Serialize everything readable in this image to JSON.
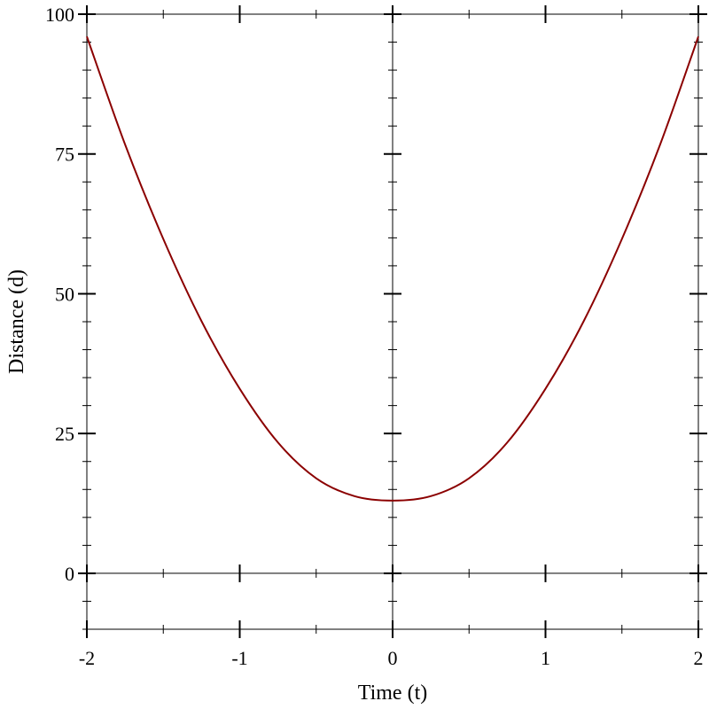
{
  "chart_data": {
    "type": "line",
    "xlabel": "Time (t)",
    "ylabel": "Distance (d)",
    "xlim": [
      -2,
      2
    ],
    "ylim": [
      -10,
      100
    ],
    "x_ticks": [
      -2,
      -1,
      0,
      1,
      2
    ],
    "x_tick_labels": [
      "-2",
      "-1",
      "0",
      "1",
      "2"
    ],
    "x_minor_step": 0.5,
    "y_ticks": [
      0,
      25,
      50,
      75,
      100
    ],
    "y_tick_labels": [
      "0",
      "25",
      "50",
      "75",
      "100"
    ],
    "y_minor_step": 5,
    "grid": "axis lines at x=0 and y=0, frame on all sides",
    "series": [
      {
        "color": "#8b0000",
        "x": [
          -2,
          -1.75,
          -1.5,
          -1.25,
          -1,
          -0.75,
          -0.5,
          -0.25,
          0,
          0.25,
          0.5,
          0.75,
          1,
          1.25,
          1.5,
          1.75,
          2
        ],
        "y": [
          96,
          76.7,
          59.8,
          45.1,
          33,
          23.4,
          17,
          13.8,
          13,
          13.8,
          17,
          23.4,
          33,
          45.1,
          59.8,
          76.7,
          96
        ]
      }
    ]
  }
}
